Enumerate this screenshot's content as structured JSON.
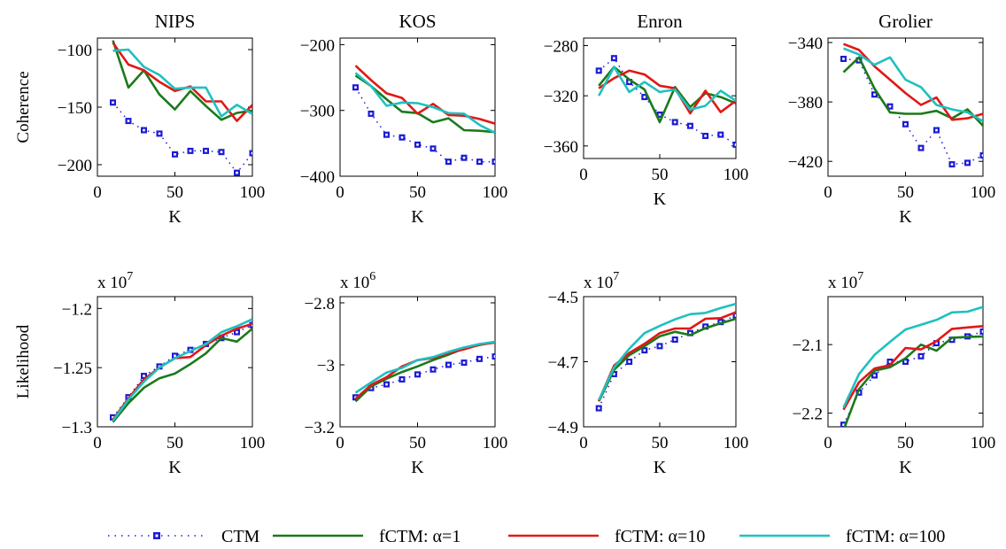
{
  "colors": {
    "CTM": "#1b1bd6",
    "fCTM1": "#1a7a1a",
    "fCTM10": "#e01818",
    "fCTM100": "#1fc0c0"
  },
  "legend": {
    "position": "bottom",
    "entries": [
      {
        "key": "CTM",
        "label": "CTM",
        "style": "dotted-square"
      },
      {
        "key": "fCTM1",
        "label": "fCTM: α=1",
        "style": "line"
      },
      {
        "key": "fCTM10",
        "label": "fCTM: α=10",
        "style": "line"
      },
      {
        "key": "fCTM100",
        "label": "fCTM: α=100",
        "style": "line"
      }
    ]
  },
  "chart_data": [
    {
      "type": "line",
      "title": "NIPS",
      "xlabel": "K",
      "ylabel": "Coherence",
      "multiplier": "",
      "xlim": [
        0,
        100
      ],
      "ylim": [
        -210,
        -90
      ],
      "xticks": [
        0,
        50,
        100
      ],
      "xtick_labels": [
        "0",
        "50",
        "100"
      ],
      "yticks": [
        -100,
        -150,
        -200
      ],
      "ytick_labels": [
        "−100",
        "−150",
        "−200"
      ],
      "x": [
        10,
        20,
        30,
        40,
        50,
        60,
        70,
        80,
        90,
        100
      ],
      "series": [
        {
          "key": "CTM",
          "name": "CTM",
          "values": [
            -146,
            -162,
            -170,
            -173,
            -191,
            -188,
            -188,
            -189,
            -207,
            -190
          ]
        },
        {
          "key": "fCTM1",
          "name": "fCTM: α=1",
          "values": [
            -92,
            -133,
            -118,
            -139,
            -152,
            -136,
            -149,
            -161,
            -155,
            -153
          ]
        },
        {
          "key": "fCTM10",
          "name": "fCTM: α=10",
          "values": [
            -94,
            -113,
            -118,
            -128,
            -136,
            -132,
            -145,
            -145,
            -162,
            -148
          ]
        },
        {
          "key": "fCTM100",
          "name": "fCTM: α=100",
          "values": [
            -101,
            -100,
            -115,
            -122,
            -134,
            -133,
            -133,
            -158,
            -148,
            -156
          ]
        }
      ]
    },
    {
      "type": "line",
      "title": "KOS",
      "xlabel": "K",
      "ylabel": "",
      "multiplier": "",
      "xlim": [
        0,
        100
      ],
      "ylim": [
        -400,
        -190
      ],
      "xticks": [
        0,
        50,
        100
      ],
      "xtick_labels": [
        "0",
        "50",
        "100"
      ],
      "yticks": [
        -200,
        -300,
        -400
      ],
      "ytick_labels": [
        "−200",
        "−300",
        "−400"
      ],
      "x": [
        10,
        20,
        30,
        40,
        50,
        60,
        70,
        80,
        90,
        100
      ],
      "series": [
        {
          "key": "CTM",
          "name": "CTM",
          "values": [
            -265,
            -305,
            -337,
            -341,
            -352,
            -358,
            -378,
            -372,
            -378,
            -378
          ]
        },
        {
          "key": "fCTM1",
          "name": "fCTM: α=1",
          "values": [
            -247,
            -263,
            -283,
            -302,
            -304,
            -318,
            -312,
            -330,
            -331,
            -333
          ]
        },
        {
          "key": "fCTM10",
          "name": "fCTM: α=10",
          "values": [
            -232,
            -254,
            -274,
            -281,
            -305,
            -290,
            -307,
            -308,
            -313,
            -320
          ]
        },
        {
          "key": "fCTM100",
          "name": "fCTM: α=100",
          "values": [
            -243,
            -263,
            -293,
            -288,
            -289,
            -295,
            -304,
            -305,
            -322,
            -334
          ]
        }
      ]
    },
    {
      "type": "line",
      "title": "Enron",
      "xlabel": "K",
      "ylabel": "",
      "multiplier": "",
      "xlim": [
        0,
        100
      ],
      "ylim": [
        -370,
        -274
      ],
      "xticks": [
        0,
        50,
        100
      ],
      "xtick_labels": [
        "0",
        "50",
        "100"
      ],
      "yticks": [
        -280,
        -320,
        -360
      ],
      "ytick_labels": [
        "−280",
        "−320",
        "−360"
      ],
      "x": [
        10,
        20,
        30,
        40,
        50,
        60,
        70,
        80,
        90,
        100
      ],
      "series": [
        {
          "key": "CTM",
          "name": "CTM",
          "values": [
            -300,
            -290,
            -309,
            -321,
            -335,
            -341,
            -344,
            -352,
            -351,
            -359
          ]
        },
        {
          "key": "fCTM1",
          "name": "fCTM: α=1",
          "values": [
            -312,
            -297,
            -307,
            -315,
            -341,
            -313,
            -329,
            -318,
            -321,
            -326
          ]
        },
        {
          "key": "fCTM10",
          "name": "fCTM: α=10",
          "values": [
            -314,
            -306,
            -300,
            -303,
            -312,
            -314,
            -334,
            -316,
            -333,
            -324
          ]
        },
        {
          "key": "fCTM100",
          "name": "fCTM: α=100",
          "values": [
            -320,
            -297,
            -317,
            -309,
            -317,
            -315,
            -331,
            -328,
            -316,
            -324
          ]
        }
      ]
    },
    {
      "type": "line",
      "title": "Grolier",
      "xlabel": "K",
      "ylabel": "",
      "multiplier": "",
      "xlim": [
        0,
        100
      ],
      "ylim": [
        -430,
        -337
      ],
      "xticks": [
        0,
        50,
        100
      ],
      "xtick_labels": [
        "0",
        "50",
        "100"
      ],
      "yticks": [
        -340,
        -380,
        -420
      ],
      "ytick_labels": [
        "−340",
        "−380",
        "−420"
      ],
      "x": [
        10,
        20,
        30,
        40,
        50,
        60,
        70,
        80,
        90,
        100
      ],
      "series": [
        {
          "key": "CTM",
          "name": "CTM",
          "values": [
            -351,
            -352,
            -375,
            -383,
            -395,
            -411,
            -399,
            -422,
            -421,
            -416
          ]
        },
        {
          "key": "fCTM1",
          "name": "fCTM: α=1",
          "values": [
            -360,
            -350,
            -371,
            -387,
            -388,
            -388,
            -386,
            -391,
            -385,
            -396
          ]
        },
        {
          "key": "fCTM10",
          "name": "fCTM: α=10",
          "values": [
            -341,
            -345,
            -356,
            -365,
            -374,
            -382,
            -377,
            -392,
            -391,
            -388
          ]
        },
        {
          "key": "fCTM100",
          "name": "fCTM: α=100",
          "values": [
            -344,
            -348,
            -355,
            -350,
            -365,
            -370,
            -382,
            -385,
            -387,
            -393
          ]
        }
      ]
    },
    {
      "type": "line",
      "title": "",
      "xlabel": "K",
      "ylabel": "Likelihood",
      "multiplier": "x 10^7",
      "xlim": [
        0,
        100
      ],
      "ylim": [
        -1.3,
        -1.19
      ],
      "xticks": [
        0,
        50,
        100
      ],
      "xtick_labels": [
        "0",
        "50",
        "100"
      ],
      "yticks": [
        -1.2,
        -1.25,
        -1.3
      ],
      "ytick_labels": [
        "−1.2",
        "−1.25",
        "−1.3"
      ],
      "x": [
        10,
        20,
        30,
        40,
        50,
        60,
        70,
        80,
        90,
        100
      ],
      "series": [
        {
          "key": "CTM",
          "name": "CTM",
          "values": [
            -1.292,
            -1.275,
            -1.257,
            -1.249,
            -1.24,
            -1.235,
            -1.23,
            -1.225,
            -1.22,
            -1.214
          ]
        },
        {
          "key": "fCTM1",
          "name": "fCTM: α=1",
          "values": [
            -1.296,
            -1.28,
            -1.267,
            -1.259,
            -1.255,
            -1.247,
            -1.238,
            -1.225,
            -1.228,
            -1.217
          ]
        },
        {
          "key": "fCTM10",
          "name": "fCTM: α=10",
          "values": [
            -1.294,
            -1.276,
            -1.26,
            -1.25,
            -1.242,
            -1.241,
            -1.231,
            -1.223,
            -1.217,
            -1.213
          ]
        },
        {
          "key": "fCTM100",
          "name": "fCTM: α=100",
          "values": [
            -1.295,
            -1.277,
            -1.262,
            -1.25,
            -1.242,
            -1.236,
            -1.23,
            -1.22,
            -1.215,
            -1.209
          ]
        }
      ]
    },
    {
      "type": "line",
      "title": "",
      "xlabel": "K",
      "ylabel": "",
      "multiplier": "x 10^6",
      "xlim": [
        0,
        100
      ],
      "ylim": [
        -3.2,
        -2.78
      ],
      "xticks": [
        0,
        50,
        100
      ],
      "xtick_labels": [
        "0",
        "50",
        "100"
      ],
      "yticks": [
        -2.8,
        -3,
        -3.2
      ],
      "ytick_labels": [
        "−2.8",
        "−3",
        "−3.2"
      ],
      "x": [
        10,
        20,
        30,
        40,
        50,
        60,
        70,
        80,
        90,
        100
      ],
      "series": [
        {
          "key": "CTM",
          "name": "CTM",
          "values": [
            -3.105,
            -3.075,
            -3.063,
            -3.047,
            -3.031,
            -3.015,
            -3.0,
            -2.993,
            -2.981,
            -2.973
          ]
        },
        {
          "key": "fCTM1",
          "name": "fCTM: α=1",
          "values": [
            -3.118,
            -3.07,
            -3.045,
            -3.023,
            -3.005,
            -2.985,
            -2.967,
            -2.947,
            -2.936,
            -2.926
          ]
        },
        {
          "key": "fCTM10",
          "name": "fCTM: α=10",
          "values": [
            -3.11,
            -3.065,
            -3.04,
            -3.005,
            -2.985,
            -2.978,
            -2.962,
            -2.95,
            -2.935,
            -2.928
          ]
        },
        {
          "key": "fCTM100",
          "name": "fCTM: α=100",
          "values": [
            -3.09,
            -3.057,
            -3.025,
            -3.01,
            -2.985,
            -2.975,
            -2.958,
            -2.944,
            -2.933,
            -2.926
          ]
        }
      ]
    },
    {
      "type": "line",
      "title": "",
      "xlabel": "K",
      "ylabel": "",
      "multiplier": "x 10^7",
      "xlim": [
        0,
        100
      ],
      "ylim": [
        -4.9,
        -4.5
      ],
      "xticks": [
        0,
        50,
        100
      ],
      "xtick_labels": [
        "0",
        "50",
        "100"
      ],
      "yticks": [
        -4.5,
        -4.7,
        -4.9
      ],
      "ytick_labels": [
        "−4.5",
        "−4.7",
        "−4.9"
      ],
      "x": [
        10,
        20,
        30,
        40,
        50,
        60,
        70,
        80,
        90,
        100
      ],
      "series": [
        {
          "key": "CTM",
          "name": "CTM",
          "values": [
            -4.843,
            -4.738,
            -4.7,
            -4.665,
            -4.652,
            -4.632,
            -4.612,
            -4.592,
            -4.578,
            -4.558
          ]
        },
        {
          "key": "fCTM1",
          "name": "fCTM: α=1",
          "values": [
            -4.822,
            -4.725,
            -4.68,
            -4.652,
            -4.622,
            -4.608,
            -4.618,
            -4.597,
            -4.582,
            -4.568
          ]
        },
        {
          "key": "fCTM10",
          "name": "fCTM: α=10",
          "values": [
            -4.82,
            -4.712,
            -4.673,
            -4.645,
            -4.612,
            -4.598,
            -4.598,
            -4.568,
            -4.566,
            -4.548
          ]
        },
        {
          "key": "fCTM100",
          "name": "fCTM: α=100",
          "values": [
            -4.818,
            -4.718,
            -4.66,
            -4.612,
            -4.59,
            -4.57,
            -4.554,
            -4.55,
            -4.535,
            -4.522
          ]
        }
      ]
    },
    {
      "type": "line",
      "title": "",
      "xlabel": "K",
      "ylabel": "",
      "multiplier": "x 10^7",
      "xlim": [
        0,
        100
      ],
      "ylim": [
        -2.22,
        -2.03
      ],
      "xticks": [
        0,
        50,
        100
      ],
      "xtick_labels": [
        "0",
        "50",
        "100"
      ],
      "yticks": [
        -2.1,
        -2.2
      ],
      "ytick_labels": [
        "−2.1",
        "−2.2"
      ],
      "x": [
        10,
        20,
        30,
        40,
        50,
        60,
        70,
        80,
        90,
        100
      ],
      "series": [
        {
          "key": "CTM",
          "name": "CTM",
          "values": [
            -2.217,
            -2.17,
            -2.145,
            -2.125,
            -2.125,
            -2.117,
            -2.098,
            -2.093,
            -2.088,
            -2.081
          ]
        },
        {
          "key": "fCTM1",
          "name": "fCTM: α=1",
          "values": [
            -2.225,
            -2.165,
            -2.138,
            -2.133,
            -2.12,
            -2.1,
            -2.109,
            -2.09,
            -2.089,
            -2.088
          ]
        },
        {
          "key": "fCTM10",
          "name": "fCTM: α=10",
          "values": [
            -2.195,
            -2.155,
            -2.135,
            -2.13,
            -2.105,
            -2.107,
            -2.095,
            -2.077,
            -2.075,
            -2.073
          ]
        },
        {
          "key": "fCTM100",
          "name": "fCTM: α=100",
          "values": [
            -2.192,
            -2.143,
            -2.115,
            -2.096,
            -2.078,
            -2.071,
            -2.064,
            -2.053,
            -2.052,
            -2.045
          ]
        }
      ]
    }
  ]
}
